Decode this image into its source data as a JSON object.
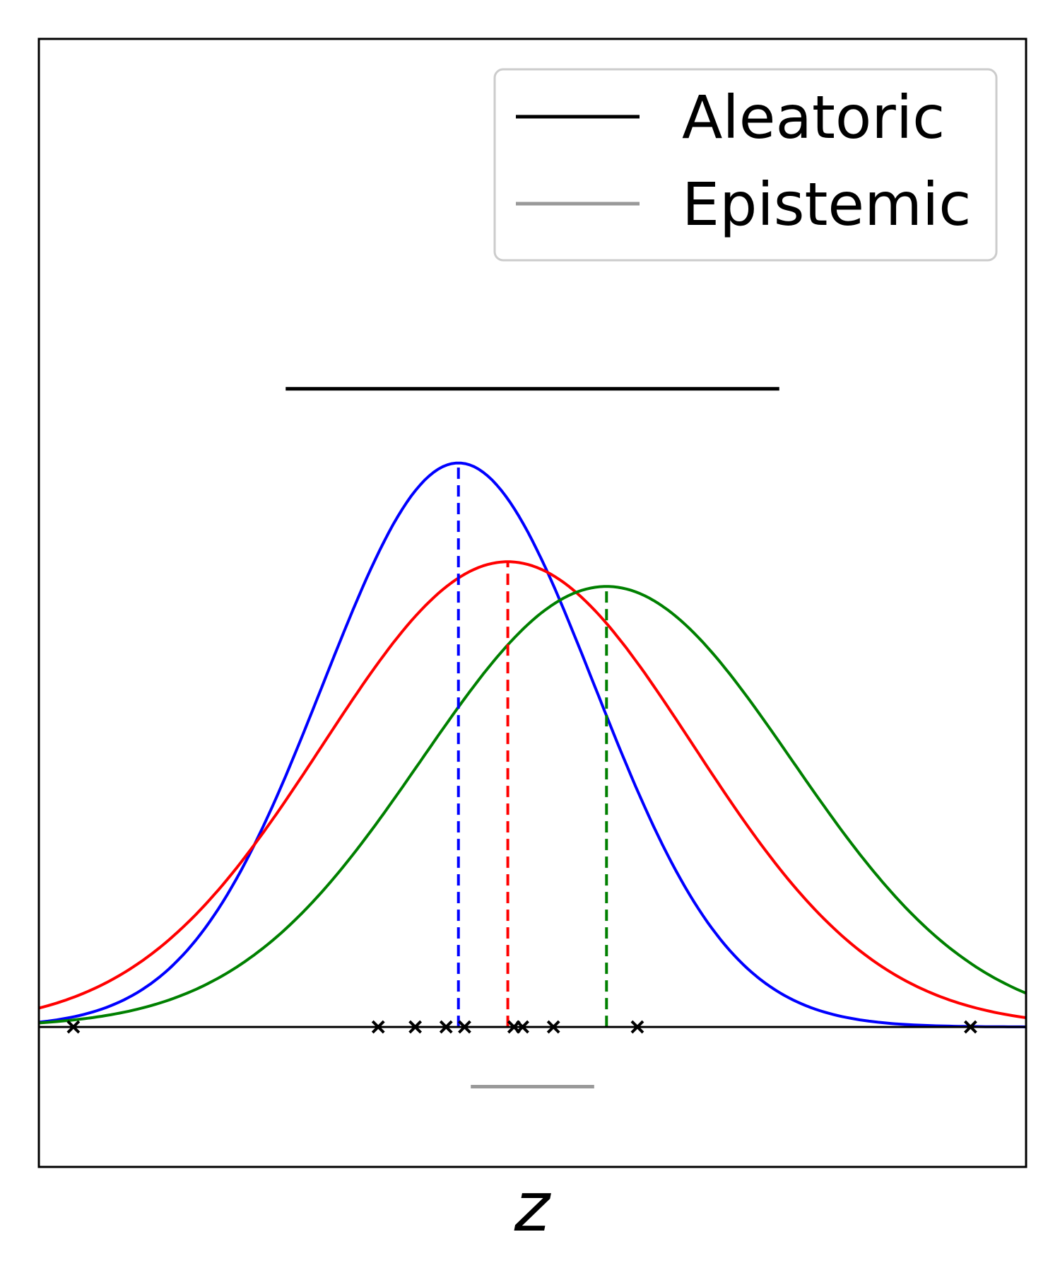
{
  "chart_data": {
    "type": "line",
    "xlabel": "z",
    "ylabel": "",
    "title": "",
    "xlim": [
      -4.2,
      3.8
    ],
    "ylim": [
      -0.068,
      0.48
    ],
    "grid": false,
    "legend": {
      "placement": "top-right",
      "entries": [
        {
          "label": "Aleatoric",
          "color": "#000000"
        },
        {
          "label": "Epistemic",
          "color": "#999999"
        }
      ]
    },
    "curves": [
      {
        "color": "#0000ff",
        "mean": -0.8,
        "std": 1.1,
        "peak": 0.274
      },
      {
        "color": "#ff0000",
        "mean": -0.4,
        "std": 1.5,
        "peak": 0.226
      },
      {
        "color": "#008000",
        "mean": 0.4,
        "std": 1.5,
        "peak": 0.214
      }
    ],
    "mean_markers": [
      {
        "color": "#0000ff",
        "x": -0.8
      },
      {
        "color": "#ff0000",
        "x": -0.4
      },
      {
        "color": "#008000",
        "x": 0.4
      }
    ],
    "baseline_y": 0,
    "samples_x": [
      -3.92,
      -1.45,
      -1.15,
      -0.9,
      -0.75,
      -0.35,
      -0.28,
      -0.03,
      0.65,
      3.35
    ],
    "aleatoric_range": {
      "x": [
        -2.2,
        1.8
      ],
      "y": 0.31
    },
    "epistemic_range": {
      "x": [
        -0.7,
        0.3
      ],
      "y": -0.029
    }
  }
}
